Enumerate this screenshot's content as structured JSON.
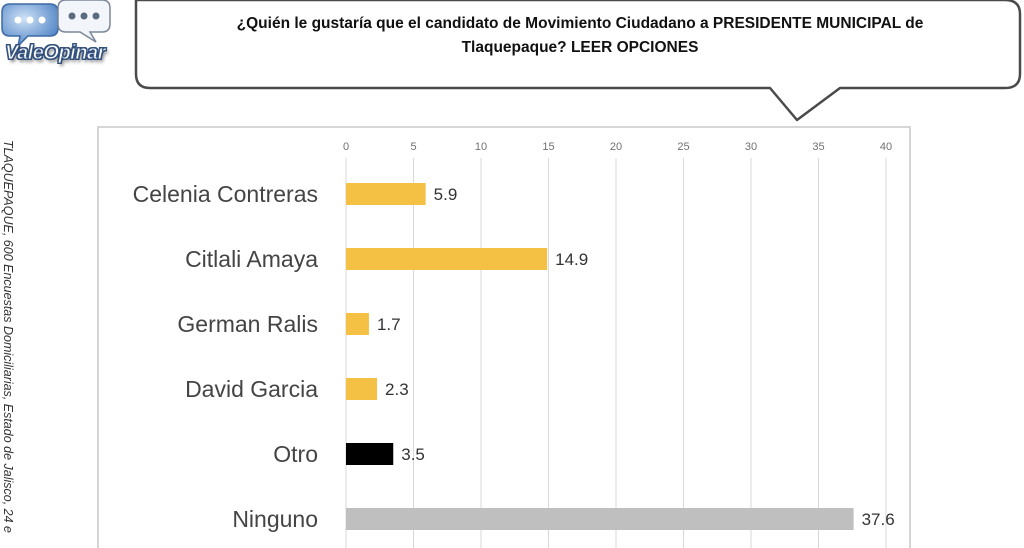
{
  "logo": {
    "text": "ValeOpinar"
  },
  "question": {
    "line1": "¿Quién le gustaría que el candidato de Movimiento Ciudadano a PRESIDENTE MUNICIPAL de",
    "line2": "Tlaquepaque? LEER OPCIONES"
  },
  "side_note": "TLAQUEPAQUE, 600 Encuestas Domiciliarias, Estado de Jalisco, 24 e",
  "colors": {
    "yellow": "#F4C144",
    "black": "#000000",
    "gray": "#BFBFBF"
  },
  "chart_data": {
    "type": "bar",
    "orientation": "horizontal",
    "title": "",
    "xlabel": "",
    "ylabel": "",
    "xlim": [
      0,
      40
    ],
    "ticks": [
      0,
      5,
      10,
      15,
      20,
      25,
      30,
      35,
      40
    ],
    "axis_position": "top",
    "grid": true,
    "categories": [
      "Celenia Contreras",
      "Citlali Amaya",
      "German Ralis",
      "David Garcia",
      "Otro",
      "Ninguno"
    ],
    "values": [
      5.9,
      14.9,
      1.7,
      2.3,
      3.5,
      37.6
    ],
    "value_labels": [
      "5.9",
      "14.9",
      "1.7",
      "2.3",
      "3.5",
      "37.6"
    ],
    "bar_colors": [
      "#F4C144",
      "#F4C144",
      "#F4C144",
      "#F4C144",
      "#000000",
      "#BFBFBF"
    ]
  }
}
